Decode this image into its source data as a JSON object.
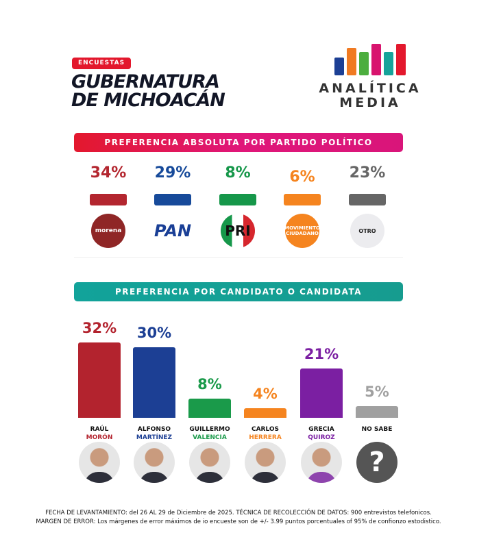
{
  "header": {
    "badge": "ENCUESTAS",
    "title_line1": "GUBERNATURA",
    "title_line2": "DE MICHOACÁN",
    "brand_line1": "ANALÍTICA",
    "brand_line2": "MEDIA",
    "brand_colors": [
      "#1c3f94",
      "#f07a22",
      "#4cae3e",
      "#d8146e",
      "#16a39a",
      "#e3182d"
    ]
  },
  "chart_data": [
    {
      "type": "bar",
      "title": "PREFERENCIA ABSOLUTA POR PARTIDO POLÍTICO",
      "categories": [
        "MORENA",
        "PAN",
        "PRI",
        "MOVIMIENTO CIUDADANO",
        "OTRO"
      ],
      "values": [
        34,
        29,
        8,
        6,
        23
      ],
      "labels": [
        "34%",
        "29%",
        "8%",
        "6%",
        "23%"
      ],
      "colors": [
        "#b3262f",
        "#174a9a",
        "#16974a",
        "#f5841f",
        "#666666"
      ],
      "logos": [
        "morena",
        "PAN",
        "PRI",
        "MOVIMIENTO CIUDADANO",
        "OTRO"
      ]
    },
    {
      "type": "bar",
      "title": "PREFERENCIA POR CANDIDATO O CANDIDATA",
      "categories": [
        {
          "first": "RAÚL",
          "last": "MORÓN"
        },
        {
          "first": "ALFONSO",
          "last": "MARTÍNEZ"
        },
        {
          "first": "GUILLERMO",
          "last": "VALENCIA"
        },
        {
          "first": "CARLOS",
          "last": "HERRERA"
        },
        {
          "first": "GRECIA",
          "last": "QUIROZ"
        },
        {
          "first": "NO SABE",
          "last": ""
        }
      ],
      "values": [
        32,
        30,
        8,
        4,
        21,
        5
      ],
      "labels": [
        "32%",
        "30%",
        "8%",
        "4%",
        "21%",
        "5%"
      ],
      "colors": [
        "#b3232e",
        "#1c3f94",
        "#1a9a4a",
        "#f5841f",
        "#7b1fa2",
        "#a0a0a0"
      ],
      "unknown_symbol": "?"
    }
  ],
  "footer": {
    "line1": "FECHA DE LEVANTAMIENTO: del  26 AL 29 de Diciembre de 2025. TÉCNICA DE RECOLECCIÓN DE DATOS: 900 entrevistos telefonicos.",
    "line2": "MARGEN DE ERROR: Los márgenes de error máximos de io encueste son de +/- 3.99 puntos porcentuales of 95% de confionzo estodistico."
  }
}
